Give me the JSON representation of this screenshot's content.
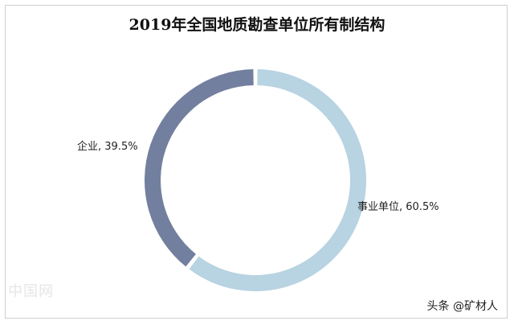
{
  "chart_data": {
    "type": "pie",
    "title": "2019年全国地质勘查单位所有制结构",
    "slices": [
      {
        "label": "事业单位, 60.5%",
        "category": "事业单位",
        "value": 60.5,
        "color": "#b8d3e1"
      },
      {
        "label": "企业, 39.5%",
        "category": "企业",
        "value": 39.5,
        "color": "#737f9e"
      }
    ],
    "legend": "none",
    "donut": true
  },
  "watermark": {
    "text": "头条 @矿材人"
  },
  "faint_watermark": {
    "text": "中国网"
  }
}
